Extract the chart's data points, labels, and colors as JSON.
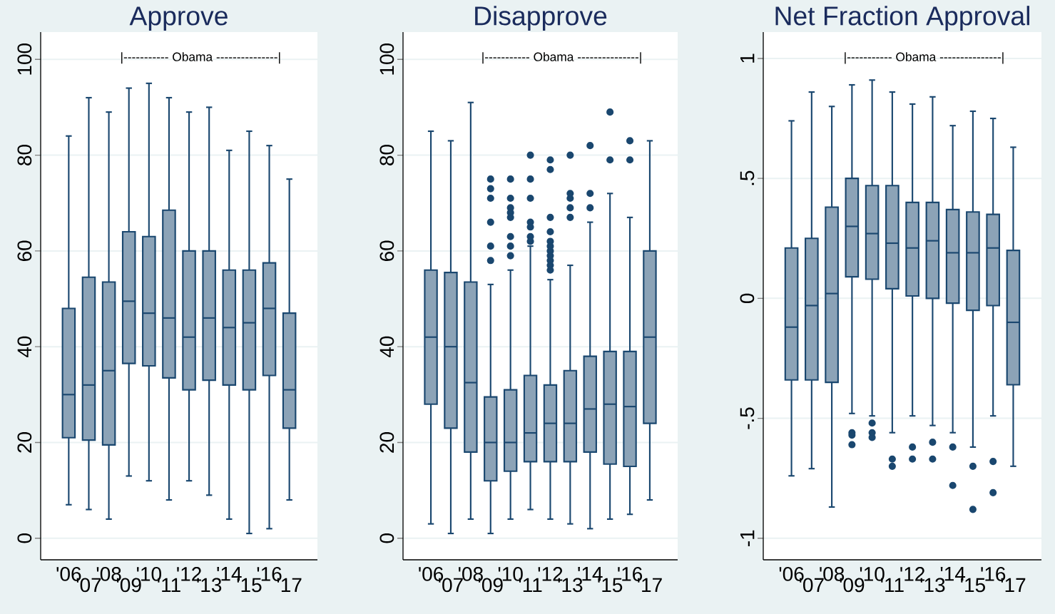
{
  "chart_data": [
    {
      "type": "box",
      "title": "Approve",
      "color": "#1a476f",
      "grid": "y",
      "categories": [
        "'06",
        "'07",
        "'08",
        "'09",
        "'10",
        "'11",
        "'12",
        "'13",
        "'14",
        "'15",
        "'16",
        "'17"
      ],
      "ylim": [
        -4.5,
        105.7
      ],
      "yticks": [
        0,
        20,
        40,
        60,
        80,
        100
      ],
      "annotations": [
        "|----------- Obama ---------------|"
      ],
      "boxes": [
        {
          "low": 7,
          "q1": 21,
          "median": 30,
          "q3": 48,
          "high": 84
        },
        {
          "low": 6,
          "q1": 20.5,
          "median": 32,
          "q3": 54.5,
          "high": 92
        },
        {
          "low": 4,
          "q1": 19.5,
          "median": 35,
          "q3": 53.5,
          "high": 89
        },
        {
          "low": 13,
          "q1": 36.5,
          "median": 49.5,
          "q3": 64,
          "high": 94
        },
        {
          "low": 12,
          "q1": 36,
          "median": 47,
          "q3": 63,
          "high": 95
        },
        {
          "low": 8,
          "q1": 33.5,
          "median": 46,
          "q3": 68.5,
          "high": 92
        },
        {
          "low": 12,
          "q1": 31,
          "median": 42,
          "q3": 60,
          "high": 89
        },
        {
          "low": 9,
          "q1": 33,
          "median": 46,
          "q3": 60,
          "high": 90
        },
        {
          "low": 4,
          "q1": 32,
          "median": 44,
          "q3": 56,
          "high": 81
        },
        {
          "low": 1,
          "q1": 31,
          "median": 45,
          "q3": 56,
          "high": 85
        },
        {
          "low": 2,
          "q1": 34,
          "median": 48,
          "q3": 57.5,
          "high": 82
        },
        {
          "low": 8,
          "q1": 23,
          "median": 31,
          "q3": 47,
          "high": 75
        }
      ]
    },
    {
      "type": "box",
      "title": "Disapprove",
      "color": "#1a476f",
      "grid": "y",
      "categories": [
        "'06",
        "'07",
        "'08",
        "'09",
        "'10",
        "'11",
        "'12",
        "'13",
        "'14",
        "'15",
        "'16",
        "'17"
      ],
      "ylim": [
        -4.5,
        105.7
      ],
      "yticks": [
        0,
        20,
        40,
        60,
        80,
        100
      ],
      "annotations": [
        "|----------- Obama ---------------|"
      ],
      "boxes": [
        {
          "low": 3,
          "q1": 28,
          "median": 42,
          "q3": 56,
          "high": 85
        },
        {
          "low": 1,
          "q1": 23,
          "median": 40,
          "q3": 55.5,
          "high": 83
        },
        {
          "low": 4,
          "q1": 18,
          "median": 32.5,
          "q3": 53.5,
          "high": 91
        },
        {
          "low": 1,
          "q1": 12,
          "median": 20,
          "q3": 29.5,
          "high": 53,
          "outliers": [
            75,
            73,
            71,
            66,
            61,
            58
          ]
        },
        {
          "low": 4,
          "q1": 14,
          "median": 20,
          "q3": 31,
          "high": 56,
          "outliers": [
            75,
            71,
            69,
            68,
            67,
            63,
            61,
            59
          ]
        },
        {
          "low": 6,
          "q1": 16,
          "median": 22,
          "q3": 34,
          "high": 61,
          "outliers": [
            80,
            75,
            71,
            66,
            65,
            63,
            62
          ]
        },
        {
          "low": 4,
          "q1": 16,
          "median": 24,
          "q3": 32,
          "high": 54,
          "outliers": [
            79,
            77,
            67,
            64,
            62,
            61,
            60,
            59,
            58,
            57,
            56
          ]
        },
        {
          "low": 3,
          "q1": 16,
          "median": 24,
          "q3": 35,
          "high": 57,
          "outliers": [
            80,
            72,
            71,
            69,
            67
          ]
        },
        {
          "low": 2,
          "q1": 18,
          "median": 27,
          "q3": 38,
          "high": 66,
          "outliers": [
            82,
            72,
            69
          ]
        },
        {
          "low": 4,
          "q1": 15.5,
          "median": 28,
          "q3": 39,
          "high": 72,
          "outliers": [
            89,
            79
          ]
        },
        {
          "low": 5,
          "q1": 15,
          "median": 27.5,
          "q3": 39,
          "high": 67,
          "outliers": [
            83,
            79
          ]
        },
        {
          "low": 8,
          "q1": 24,
          "median": 42,
          "q3": 60,
          "high": 83
        }
      ]
    },
    {
      "type": "box",
      "title": "Net Fraction Approval",
      "color": "#1a476f",
      "grid": "y",
      "categories": [
        "'06",
        "'07",
        "'08",
        "'09",
        "'10",
        "'11",
        "'12",
        "'13",
        "'14",
        "'15",
        "'16",
        "'17"
      ],
      "ylim": [
        -1.09,
        1.11
      ],
      "yticks": [
        {
          "value": -1,
          "label": "-1"
        },
        {
          "value": -0.5,
          "label": "-.5"
        },
        0,
        {
          "value": 0.5,
          "label": ".5"
        },
        1
      ],
      "annotations": [
        "|----------- Obama ---------------|"
      ],
      "boxes": [
        {
          "low": -0.74,
          "q1": -0.34,
          "median": -0.12,
          "q3": 0.21,
          "high": 0.74
        },
        {
          "low": -0.71,
          "q1": -0.34,
          "median": -0.03,
          "q3": 0.25,
          "high": 0.86
        },
        {
          "low": -0.87,
          "q1": -0.35,
          "median": 0.02,
          "q3": 0.38,
          "high": 0.8
        },
        {
          "low": -0.48,
          "q1": 0.09,
          "median": 0.3,
          "q3": 0.5,
          "high": 0.89,
          "outliers": [
            -0.56,
            -0.57,
            -0.61
          ]
        },
        {
          "low": -0.49,
          "q1": 0.08,
          "median": 0.27,
          "q3": 0.47,
          "high": 0.91,
          "outliers": [
            -0.52,
            -0.56,
            -0.58
          ]
        },
        {
          "low": -0.56,
          "q1": 0.04,
          "median": 0.23,
          "q3": 0.47,
          "high": 0.86,
          "outliers": [
            -0.67,
            -0.7
          ]
        },
        {
          "low": -0.49,
          "q1": 0.01,
          "median": 0.21,
          "q3": 0.4,
          "high": 0.81,
          "outliers": [
            -0.62,
            -0.67
          ]
        },
        {
          "low": -0.53,
          "q1": 0.0,
          "median": 0.24,
          "q3": 0.4,
          "high": 0.84,
          "outliers": [
            -0.6,
            -0.67
          ]
        },
        {
          "low": -0.56,
          "q1": -0.02,
          "median": 0.19,
          "q3": 0.37,
          "high": 0.72,
          "outliers": [
            -0.62,
            -0.78
          ]
        },
        {
          "low": -0.62,
          "q1": -0.05,
          "median": 0.19,
          "q3": 0.36,
          "high": 0.78,
          "outliers": [
            -0.7,
            -0.88
          ]
        },
        {
          "low": -0.49,
          "q1": -0.03,
          "median": 0.21,
          "q3": 0.35,
          "high": 0.75,
          "outliers": [
            -0.68,
            -0.81
          ]
        },
        {
          "low": -0.7,
          "q1": -0.36,
          "median": -0.1,
          "q3": 0.2,
          "high": 0.63
        }
      ]
    }
  ]
}
